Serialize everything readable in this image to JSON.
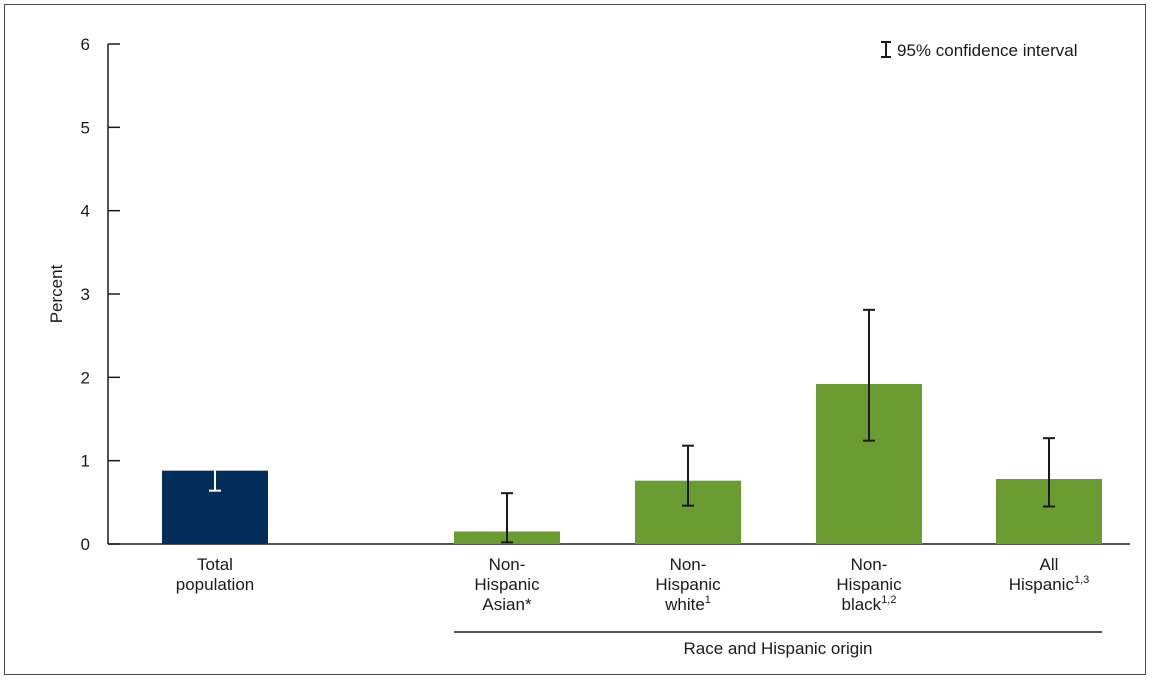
{
  "chart_data": {
    "type": "bar",
    "ylabel": "Percent",
    "ylim": [
      0,
      6
    ],
    "yticks": [
      "0",
      "1",
      "2",
      "3",
      "4",
      "5",
      "6"
    ],
    "group_label": "Race and Hispanic origin",
    "legend": "95% confidence interval",
    "categories": [
      {
        "lines": [
          "Total",
          "population"
        ],
        "sup": ""
      },
      {
        "lines": [
          "Non-",
          "Hispanic",
          "Asian*"
        ],
        "sup": ""
      },
      {
        "lines": [
          "Non-",
          "Hispanic",
          "white"
        ],
        "sup": "1"
      },
      {
        "lines": [
          "Non-",
          "Hispanic",
          "black"
        ],
        "sup": "1,2"
      },
      {
        "lines": [
          "All",
          "Hispanic"
        ],
        "sup": "1,3"
      }
    ],
    "values": [
      0.88,
      0.15,
      0.76,
      1.92,
      0.78
    ],
    "ci_low": [
      0.64,
      0.02,
      0.46,
      1.24,
      0.45
    ],
    "ci_high": [
      1.21,
      0.61,
      1.18,
      2.81,
      1.27
    ],
    "colors": [
      "#002d5a",
      "#6a9c32",
      "#6a9c32",
      "#6a9c32",
      "#6a9c32"
    ],
    "error_bar_colors": [
      "#ffffff",
      "#1a1a1a",
      "#1a1a1a",
      "#1a1a1a",
      "#1a1a1a"
    ]
  }
}
